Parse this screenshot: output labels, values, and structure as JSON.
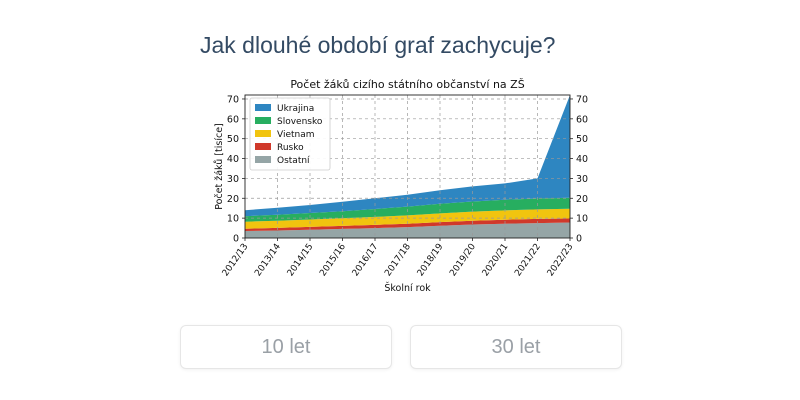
{
  "question": "Jak dlouhé období graf zachycuje?",
  "answers": [
    "10 let",
    "30 let"
  ],
  "chart_data": {
    "type": "area",
    "stacked": true,
    "title": "Počet žáků cizího státního občanství na ZŠ",
    "xlabel": "Školní rok",
    "ylabel": "Počet žáků [tisíce]",
    "ylim": [
      0,
      72
    ],
    "yticks": [
      0,
      10,
      20,
      30,
      40,
      50,
      60,
      70
    ],
    "grid": true,
    "legend_position": "top-left",
    "categories": [
      "2012/13",
      "2013/14",
      "2014/15",
      "2015/16",
      "2016/17",
      "2017/18",
      "2018/19",
      "2019/20",
      "2020/21",
      "2021/22",
      "2022/23"
    ],
    "series": [
      {
        "name": "Ostatní",
        "color": "#95a5a6",
        "values": [
          3.5,
          3.8,
          4.2,
          4.6,
          5.0,
          5.5,
          6.2,
          6.8,
          7.2,
          7.5,
          7.8
        ]
      },
      {
        "name": "Rusko",
        "color": "#d0392b",
        "values": [
          1.2,
          1.3,
          1.4,
          1.5,
          1.6,
          1.7,
          1.8,
          1.9,
          2.0,
          2.1,
          2.0
        ]
      },
      {
        "name": "Vietnam",
        "color": "#f1c40f",
        "values": [
          3.5,
          3.6,
          3.7,
          3.8,
          4.0,
          4.2,
          4.4,
          4.6,
          4.7,
          4.8,
          4.9
        ]
      },
      {
        "name": "Slovensko",
        "color": "#27ae60",
        "values": [
          2.8,
          3.0,
          3.3,
          3.6,
          4.0,
          4.4,
          4.8,
          5.1,
          5.4,
          5.5,
          5.6
        ]
      },
      {
        "name": "Ukrajina",
        "color": "#2e86c1",
        "values": [
          3.0,
          3.5,
          4.0,
          4.8,
          5.4,
          6.0,
          6.8,
          7.6,
          8.2,
          10.1,
          51.7
        ]
      }
    ]
  }
}
